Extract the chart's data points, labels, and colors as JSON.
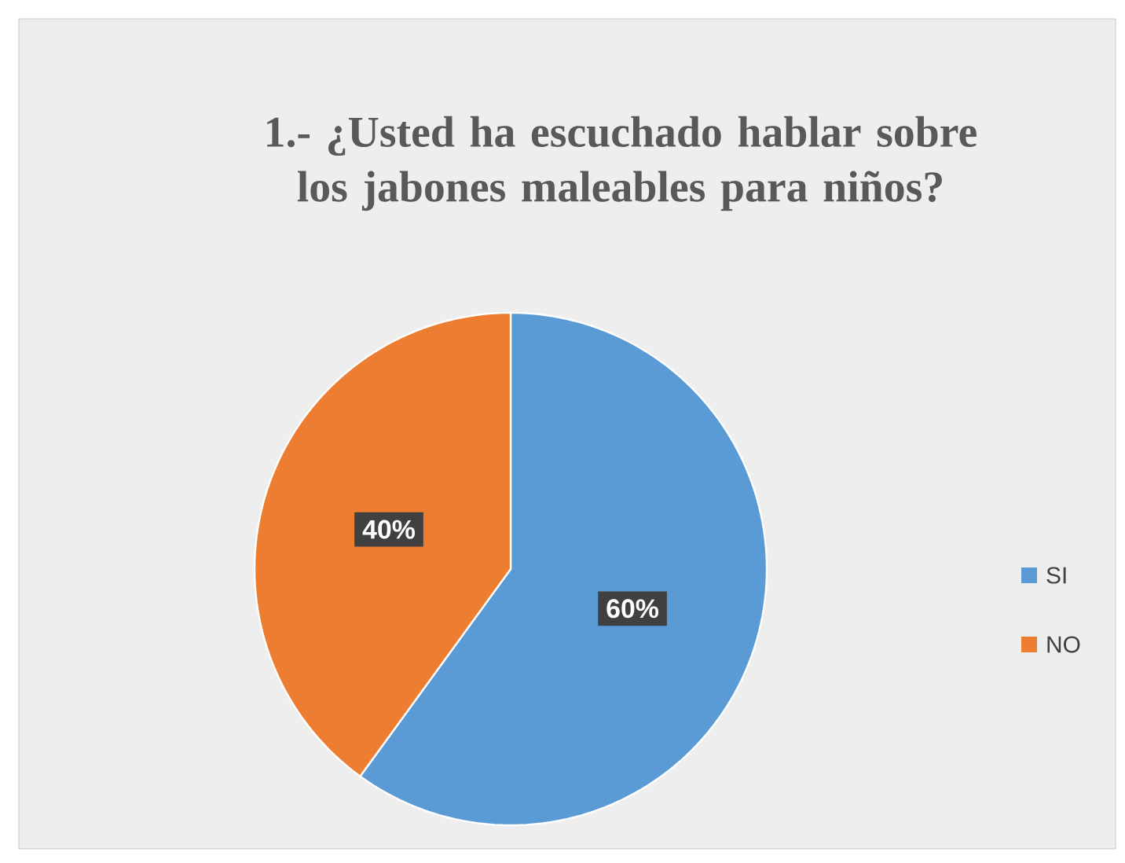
{
  "chart_data": {
    "type": "pie",
    "title": "1.- ¿Usted ha escuchado hablar sobre los jabones maleables para niños?",
    "categories": [
      "SI",
      "NO"
    ],
    "values": [
      60,
      40
    ],
    "colors": [
      "#5b9bd5",
      "#ed7d31"
    ],
    "value_labels": [
      "60%",
      "40%"
    ],
    "legend": "right"
  }
}
